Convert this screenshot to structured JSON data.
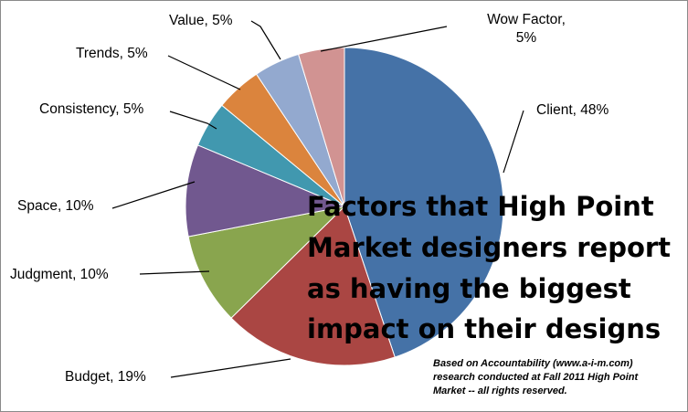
{
  "chart_data": {
    "type": "pie",
    "title_lines": [
      "Factors that High Point",
      "Market designers report",
      "as having the biggest",
      "impact on their designs"
    ],
    "note_lines": [
      "Based on Accountability (www.a-i-m.com)",
      "research conducted at Fall 2011 High Point",
      "Market -- all rights reserved."
    ],
    "slices": [
      {
        "label": [
          "Client, 48%"
        ],
        "category": "Client",
        "value": 48,
        "color": "#4572A7"
      },
      {
        "label": [
          "Budget, 19%"
        ],
        "category": "Budget",
        "value": 19,
        "color": "#AA4643"
      },
      {
        "label": [
          "Judgment, 10%"
        ],
        "category": "Judgment",
        "value": 10,
        "color": "#89A54E"
      },
      {
        "label": [
          "Space, 10%"
        ],
        "category": "Space",
        "value": 10,
        "color": "#71588F"
      },
      {
        "label": [
          "Consistency, 5%"
        ],
        "category": "Consistency",
        "value": 5,
        "color": "#4198AF"
      },
      {
        "label": [
          "Trends, 5%"
        ],
        "category": "Trends",
        "value": 5,
        "color": "#DB843D"
      },
      {
        "label": [
          "Value, 5%"
        ],
        "category": "Value",
        "value": 5,
        "color": "#93A9CF"
      },
      {
        "label": [
          "Wow Factor,",
          "5%"
        ],
        "category": "Wow Factor",
        "value": 5,
        "color": "#D19392"
      }
    ]
  }
}
